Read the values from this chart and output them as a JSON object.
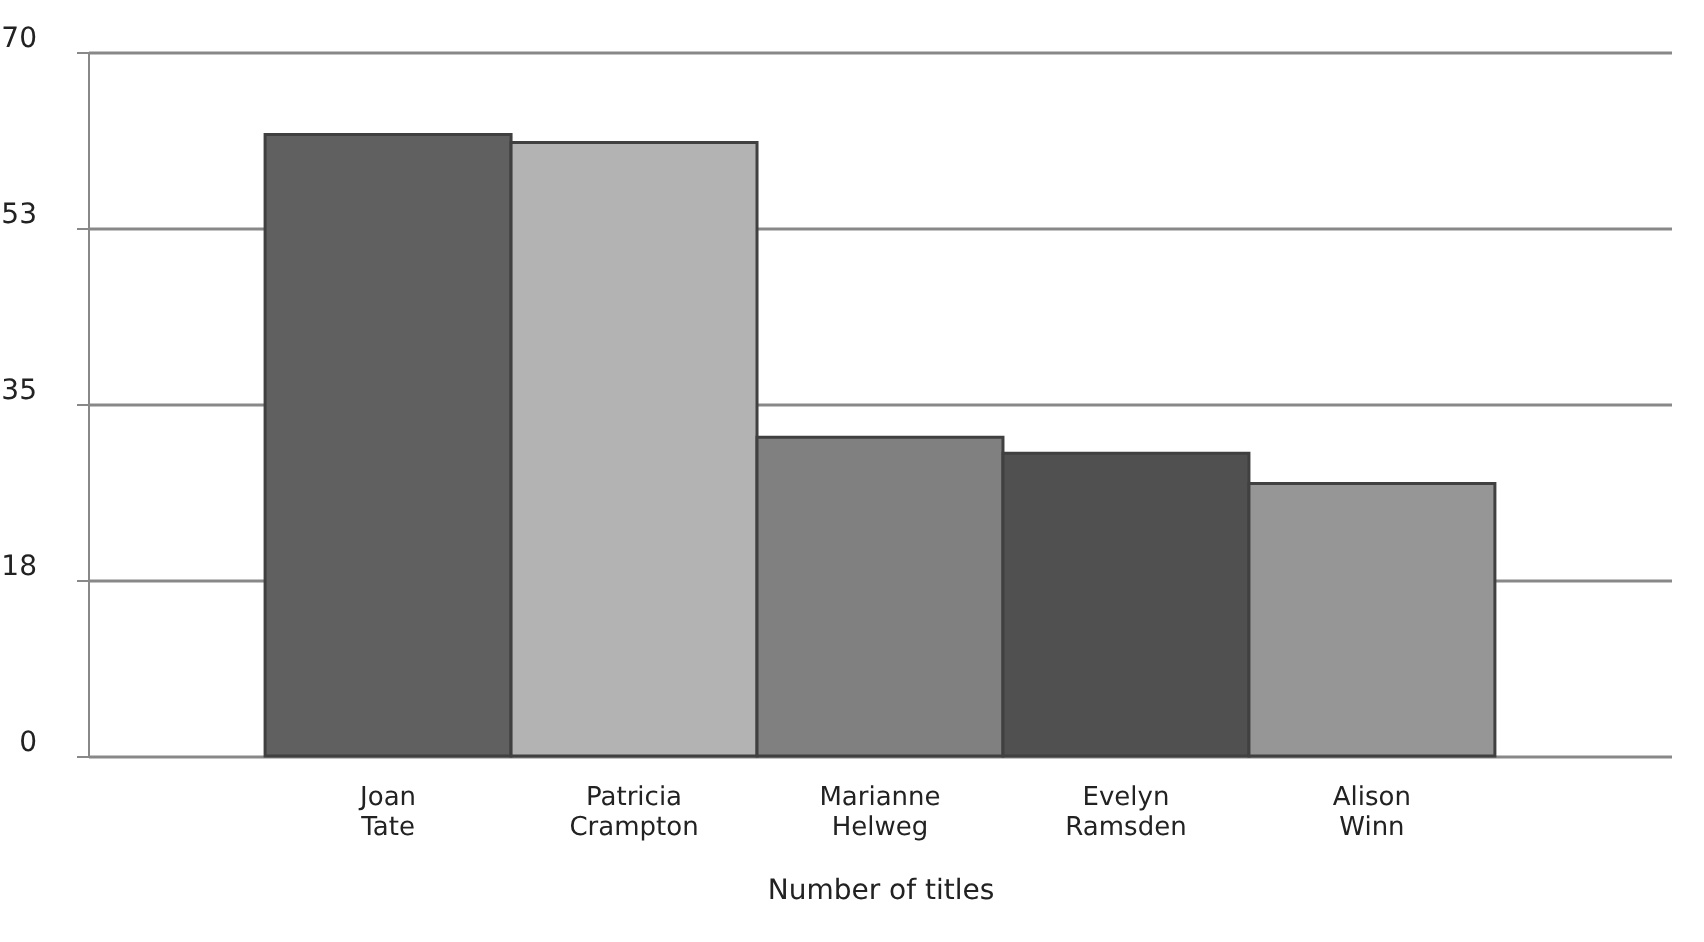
{
  "chart_data": {
    "type": "bar",
    "xlabel": "Number of titles",
    "categories": [
      "Joan Tate",
      "Patricia Crampton",
      "Marianne Helweg",
      "Evelyn Ramsden",
      "Alison Winn"
    ],
    "values": [
      61.8,
      61.0,
      31.7,
      30.1,
      27.1
    ],
    "colors": [
      "#606060",
      "#b3b3b3",
      "#808080",
      "#505050",
      "#969696"
    ],
    "ylim": [
      0,
      70
    ],
    "yticks": [
      0,
      {
        "value": 17.5,
        "label": "18"
      },
      35,
      {
        "value": 52.5,
        "label": "53"
      },
      70
    ],
    "grid": "y"
  }
}
